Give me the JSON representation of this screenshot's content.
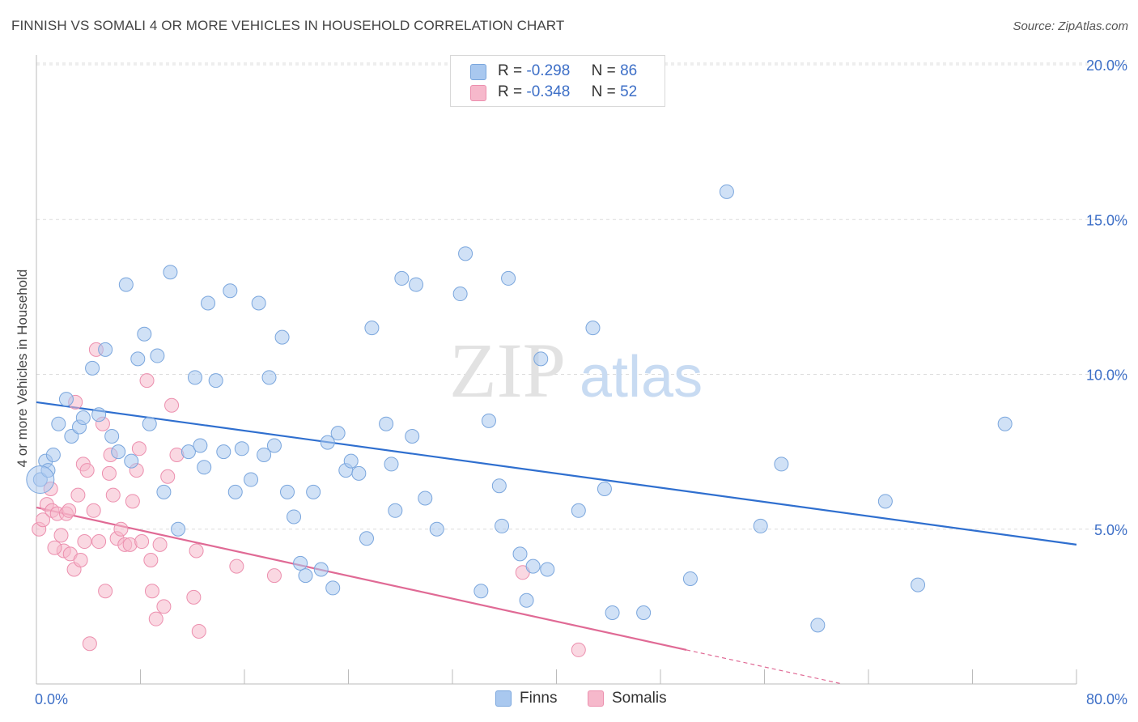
{
  "title": "FINNISH VS SOMALI 4 OR MORE VEHICLES IN HOUSEHOLD CORRELATION CHART",
  "source": "Source: ZipAtlas.com",
  "watermark": {
    "zip": "ZIP",
    "atlas": "atlas"
  },
  "legend": {
    "finns": {
      "r_label": "R =",
      "r_value": "-0.298",
      "n_label": "N =",
      "n_value": "86"
    },
    "somalis": {
      "r_label": "R =",
      "r_value": "-0.348",
      "n_label": "N =",
      "n_value": "52"
    }
  },
  "colors": {
    "finns_fill": "#a9c8ef",
    "finns_stroke": "#7aa6dd",
    "finns_line": "#2f6fcf",
    "somalis_fill": "#f6b8cb",
    "somalis_stroke": "#ec8fae",
    "somalis_line": "#e06a95",
    "tick_label": "#3d6fc7",
    "grid": "#dcdcdc"
  },
  "chart_data": {
    "type": "scatter",
    "ylabel": "4 or more Vehicles in Household",
    "xlim": [
      0,
      80
    ],
    "ylim": [
      0,
      20
    ],
    "x_tick_labels": [
      "0.0%",
      "80.0%"
    ],
    "y_ticks": [
      5,
      10,
      15,
      20
    ],
    "y_tick_labels": [
      "5.0%",
      "10.0%",
      "15.0%",
      "20.0%"
    ],
    "grid": "horizontal dashed",
    "legend_position": "top-center",
    "series": [
      {
        "name": "Finns",
        "trend": {
          "x0": 0,
          "y0": 9.1,
          "x1": 80,
          "y1": 4.5
        },
        "points": [
          [
            0.3,
            6.6
          ],
          [
            0.7,
            7.2
          ],
          [
            1.3,
            7.4
          ],
          [
            1.7,
            8.4
          ],
          [
            2.3,
            9.2
          ],
          [
            2.7,
            8.0
          ],
          [
            3.3,
            8.3
          ],
          [
            3.6,
            8.6
          ],
          [
            4.3,
            10.2
          ],
          [
            4.8,
            8.7
          ],
          [
            5.3,
            10.8
          ],
          [
            5.8,
            8.0
          ],
          [
            6.3,
            7.5
          ],
          [
            6.9,
            12.9
          ],
          [
            7.3,
            7.2
          ],
          [
            7.8,
            10.5
          ],
          [
            8.3,
            11.3
          ],
          [
            8.7,
            8.4
          ],
          [
            9.3,
            10.6
          ],
          [
            9.8,
            6.2
          ],
          [
            10.3,
            13.3
          ],
          [
            10.9,
            5.0
          ],
          [
            11.7,
            7.5
          ],
          [
            12.2,
            9.9
          ],
          [
            12.6,
            7.7
          ],
          [
            12.9,
            7.0
          ],
          [
            13.2,
            12.3
          ],
          [
            13.8,
            9.8
          ],
          [
            14.4,
            7.5
          ],
          [
            14.9,
            12.7
          ],
          [
            15.3,
            6.2
          ],
          [
            15.8,
            7.6
          ],
          [
            16.5,
            6.6
          ],
          [
            17.1,
            12.3
          ],
          [
            17.5,
            7.4
          ],
          [
            17.9,
            9.9
          ],
          [
            18.3,
            7.7
          ],
          [
            18.9,
            11.2
          ],
          [
            19.3,
            6.2
          ],
          [
            19.8,
            5.4
          ],
          [
            20.3,
            3.9
          ],
          [
            20.7,
            3.5
          ],
          [
            21.3,
            6.2
          ],
          [
            21.9,
            3.7
          ],
          [
            22.4,
            7.8
          ],
          [
            22.8,
            3.1
          ],
          [
            23.2,
            8.1
          ],
          [
            23.8,
            6.9
          ],
          [
            24.2,
            7.2
          ],
          [
            24.8,
            6.8
          ],
          [
            25.4,
            4.7
          ],
          [
            25.8,
            11.5
          ],
          [
            26.9,
            8.4
          ],
          [
            27.3,
            7.1
          ],
          [
            27.6,
            5.6
          ],
          [
            28.1,
            13.1
          ],
          [
            28.9,
            8.0
          ],
          [
            29.2,
            12.9
          ],
          [
            29.9,
            6.0
          ],
          [
            30.8,
            5.0
          ],
          [
            32.6,
            12.6
          ],
          [
            33.0,
            13.9
          ],
          [
            34.2,
            3.0
          ],
          [
            34.8,
            8.5
          ],
          [
            35.6,
            6.4
          ],
          [
            35.8,
            5.1
          ],
          [
            36.3,
            13.1
          ],
          [
            37.2,
            4.2
          ],
          [
            37.7,
            2.7
          ],
          [
            38.2,
            3.8
          ],
          [
            38.8,
            10.5
          ],
          [
            39.3,
            3.7
          ],
          [
            41.7,
            5.6
          ],
          [
            42.8,
            11.5
          ],
          [
            43.7,
            6.3
          ],
          [
            44.3,
            2.3
          ],
          [
            46.7,
            2.3
          ],
          [
            50.3,
            3.4
          ],
          [
            53.1,
            15.9
          ],
          [
            55.7,
            5.1
          ],
          [
            57.3,
            7.1
          ],
          [
            60.1,
            1.9
          ],
          [
            65.3,
            5.9
          ],
          [
            67.8,
            3.2
          ],
          [
            74.5,
            8.4
          ],
          [
            0.9,
            6.9
          ]
        ]
      },
      {
        "name": "Somalis",
        "trend": {
          "x0": 0,
          "y0": 5.7,
          "x1": 50,
          "y1": 1.1,
          "dash_x1": 62,
          "dash_y1": 0
        },
        "points": [
          [
            0.2,
            5.0
          ],
          [
            0.5,
            5.3
          ],
          [
            0.8,
            5.8
          ],
          [
            1.1,
            6.3
          ],
          [
            1.2,
            5.6
          ],
          [
            1.6,
            5.5
          ],
          [
            1.9,
            4.8
          ],
          [
            2.1,
            4.3
          ],
          [
            2.3,
            5.5
          ],
          [
            2.6,
            4.2
          ],
          [
            2.9,
            3.7
          ],
          [
            3.0,
            9.1
          ],
          [
            3.2,
            6.1
          ],
          [
            3.4,
            4.0
          ],
          [
            3.6,
            7.1
          ],
          [
            3.7,
            4.6
          ],
          [
            3.9,
            6.9
          ],
          [
            4.1,
            1.3
          ],
          [
            4.4,
            5.6
          ],
          [
            4.6,
            10.8
          ],
          [
            4.8,
            4.6
          ],
          [
            5.1,
            8.4
          ],
          [
            5.3,
            3.0
          ],
          [
            5.6,
            6.8
          ],
          [
            5.9,
            6.1
          ],
          [
            6.2,
            4.7
          ],
          [
            6.5,
            5.0
          ],
          [
            6.8,
            4.5
          ],
          [
            7.2,
            4.5
          ],
          [
            7.4,
            5.9
          ],
          [
            7.7,
            6.9
          ],
          [
            7.9,
            7.6
          ],
          [
            8.1,
            4.6
          ],
          [
            8.5,
            9.8
          ],
          [
            8.8,
            4.0
          ],
          [
            8.9,
            3.0
          ],
          [
            9.2,
            2.1
          ],
          [
            9.5,
            4.5
          ],
          [
            9.8,
            2.5
          ],
          [
            10.1,
            6.7
          ],
          [
            10.4,
            9.0
          ],
          [
            10.8,
            7.4
          ],
          [
            12.1,
            2.8
          ],
          [
            12.3,
            4.3
          ],
          [
            12.5,
            1.7
          ],
          [
            15.4,
            3.8
          ],
          [
            18.3,
            3.5
          ],
          [
            37.4,
            3.6
          ],
          [
            41.7,
            1.1
          ],
          [
            2.5,
            5.6
          ],
          [
            5.7,
            7.4
          ],
          [
            1.4,
            4.4
          ]
        ]
      }
    ]
  }
}
